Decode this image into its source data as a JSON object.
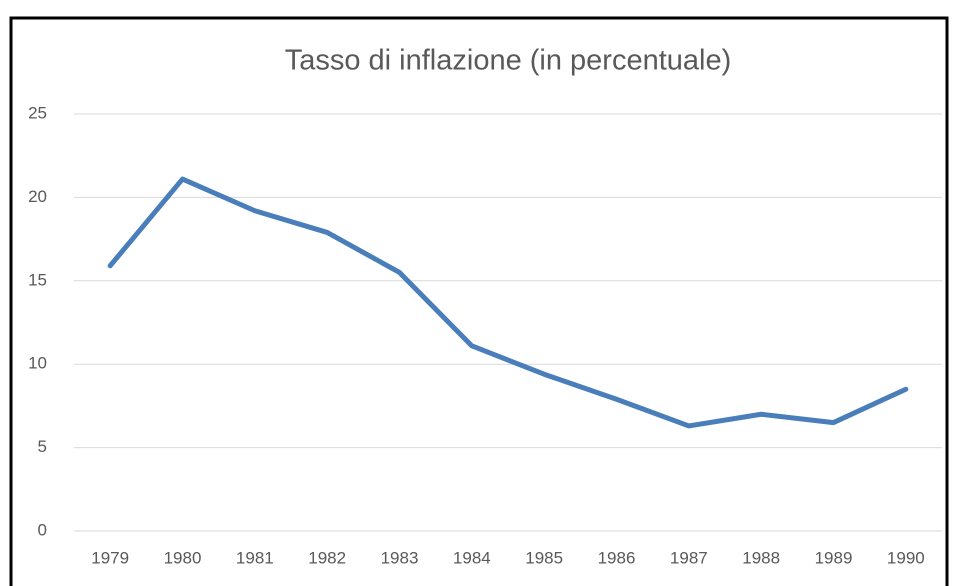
{
  "chart_data": {
    "type": "line",
    "title": "Tasso di inflazione (in percentuale)",
    "categories": [
      "1979",
      "1980",
      "1981",
      "1982",
      "1983",
      "1984",
      "1985",
      "1986",
      "1987",
      "1988",
      "1989",
      "1990"
    ],
    "series": [
      {
        "name": "Tasso di inflazione",
        "color": "#4a7ebb",
        "values": [
          15.9,
          21.1,
          19.2,
          17.9,
          15.5,
          11.1,
          9.4,
          7.9,
          6.3,
          7.0,
          6.5,
          8.5
        ]
      }
    ],
    "ylim": [
      0,
      25
    ],
    "yticks": [
      0,
      5,
      10,
      15,
      20,
      25
    ],
    "grid": true
  }
}
